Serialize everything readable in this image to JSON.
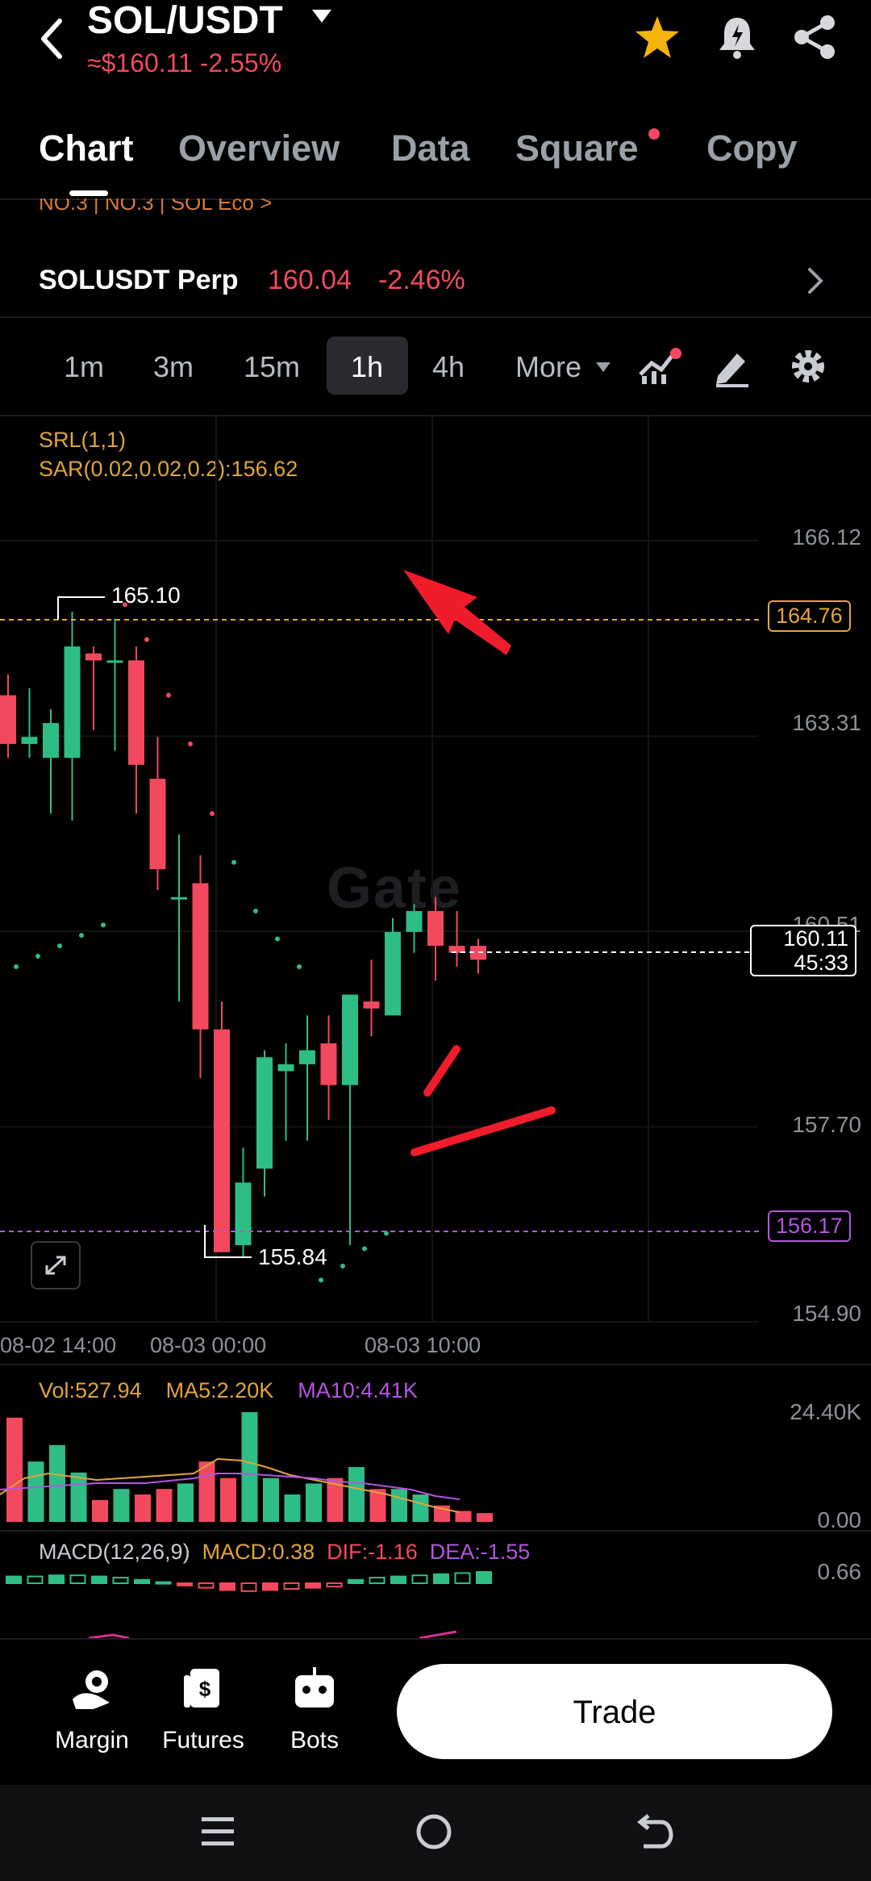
{
  "header": {
    "pair": "SOL/USDT",
    "price_line": "≈$160.11  -2.55%"
  },
  "tabs": [
    "Chart",
    "Overview",
    "Data",
    "Square",
    "Copy"
  ],
  "strip_text": "NO.3   |   NO.3   |   SOL Eco  >",
  "perp": {
    "name": "SOLUSDT Perp",
    "price": "160.04",
    "pct": "-2.46%"
  },
  "timeframes": [
    "1m",
    "3m",
    "15m",
    "1h",
    "4h",
    "More"
  ],
  "active_timeframe": "1h",
  "indicators": {
    "srl": "SRL(1,1)",
    "sar": "SAR(0.02,0.02,0.2):156.62"
  },
  "price_axis": [
    "166.12",
    "163.31",
    "160.51",
    "157.70",
    "154.90"
  ],
  "price_boxes": {
    "top_dashed": "164.76",
    "bottom_dashed": "156.17",
    "current_price": "160.11",
    "countdown": "45:33"
  },
  "high_label": "165.10",
  "low_label": "155.84",
  "time_axis": [
    "08-02 14:00",
    "08-03 00:00",
    "08-03 10:00"
  ],
  "watermark": "Gate",
  "volume": {
    "vol": "Vol:527.94",
    "ma5": "MA5:2.20K",
    "ma10": "MA10:4.41K",
    "axis_top": "24.40K",
    "axis_bottom": "0.00"
  },
  "macd": {
    "label": "MACD(12,26,9)",
    "macd": "MACD:0.38",
    "dif": "DIF:-1.16",
    "dea": "DEA:-1.55",
    "axis_top": "0.66"
  },
  "bottom_nav": {
    "margin": "Margin",
    "futures": "Futures",
    "bots": "Bots",
    "trade": "Trade"
  },
  "colors": {
    "up": "#2ebd85",
    "down": "#f2495e",
    "accent_orange": "#e7a43a",
    "accent_purple": "#b355e0",
    "background": "#000000"
  },
  "chart_data": {
    "type": "candlestick",
    "timeframe": "1h",
    "x_ticks": [
      "08-02 14:00",
      "08-03 00:00",
      "08-03 10:00"
    ],
    "y_ticks": [
      166.12,
      163.31,
      160.51,
      157.7,
      154.9
    ],
    "ylim": [
      154.9,
      166.12
    ],
    "candles": [
      {
        "o": 163.9,
        "h": 164.2,
        "l": 163.0,
        "c": 163.2
      },
      {
        "o": 163.2,
        "h": 164.0,
        "l": 163.0,
        "c": 163.3
      },
      {
        "o": 163.0,
        "h": 163.7,
        "l": 162.2,
        "c": 163.5
      },
      {
        "o": 163.0,
        "h": 165.1,
        "l": 162.1,
        "c": 164.6
      },
      {
        "o": 164.5,
        "h": 164.6,
        "l": 163.4,
        "c": 164.4
      },
      {
        "o": 164.4,
        "h": 165.0,
        "l": 163.1,
        "c": 164.4
      },
      {
        "o": 164.4,
        "h": 164.6,
        "l": 162.2,
        "c": 162.9
      },
      {
        "o": 162.7,
        "h": 163.3,
        "l": 161.1,
        "c": 161.4
      },
      {
        "o": 161.0,
        "h": 161.9,
        "l": 159.5,
        "c": 161.0
      },
      {
        "o": 161.2,
        "h": 161.6,
        "l": 158.4,
        "c": 159.1
      },
      {
        "o": 159.1,
        "h": 159.5,
        "l": 155.9,
        "c": 155.9
      },
      {
        "o": 156.0,
        "h": 157.4,
        "l": 155.84,
        "c": 156.9
      },
      {
        "o": 157.1,
        "h": 158.8,
        "l": 156.7,
        "c": 158.7
      },
      {
        "o": 158.5,
        "h": 158.9,
        "l": 157.5,
        "c": 158.6
      },
      {
        "o": 158.6,
        "h": 159.3,
        "l": 157.5,
        "c": 158.8
      },
      {
        "o": 158.9,
        "h": 159.3,
        "l": 157.8,
        "c": 158.3
      },
      {
        "o": 158.3,
        "h": 159.5,
        "l": 156.0,
        "c": 159.6
      },
      {
        "o": 159.5,
        "h": 160.1,
        "l": 159.0,
        "c": 159.4
      },
      {
        "o": 159.3,
        "h": 160.7,
        "l": 159.3,
        "c": 160.5
      },
      {
        "o": 160.5,
        "h": 160.9,
        "l": 160.2,
        "c": 160.8
      },
      {
        "o": 160.8,
        "h": 161.0,
        "l": 159.8,
        "c": 160.3
      },
      {
        "o": 160.3,
        "h": 160.8,
        "l": 160.0,
        "c": 160.2
      },
      {
        "o": 160.3,
        "h": 160.4,
        "l": 159.9,
        "c": 160.1
      }
    ],
    "sar_points": [
      160.0,
      160.15,
      160.3,
      160.45,
      160.6,
      165.2,
      164.7,
      163.9,
      163.2,
      162.2,
      161.5,
      160.8,
      160.4,
      160.0,
      155.5,
      155.7,
      155.95,
      156.17
    ]
  }
}
